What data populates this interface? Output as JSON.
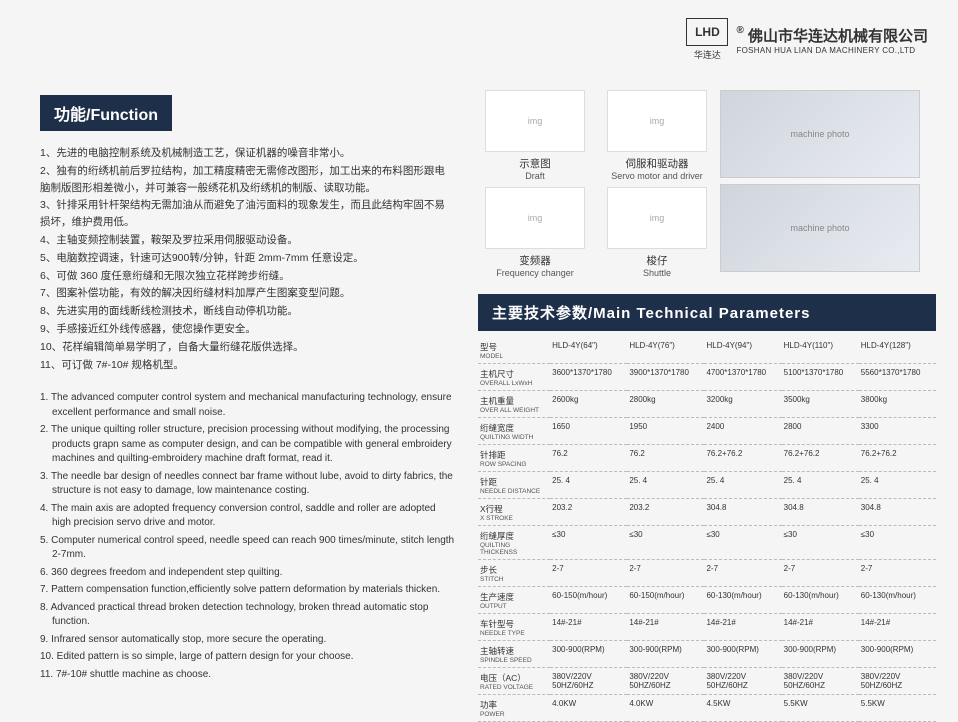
{
  "logo": {
    "mark": "LHD",
    "sub": "华连达",
    "reg": "®"
  },
  "company": {
    "cn": "佛山市华连达机械有限公司",
    "en": "FOSHAN HUA LIAN DA MACHINERY CO.,LTD"
  },
  "func_title": "功能/Function",
  "func_cn": [
    "1、先进的电脑控制系统及机械制造工艺，保证机器的噪音非常小。",
    "2、独有的绗绣机前后罗拉结构，加工精度精密无需修改图形，加工出来的布料图形跟电脑制版图形相差微小，并可兼容一般绣花机及绗绣机的制版、读取功能。",
    "3、针排采用针杆架结构无需加油从而避免了油污面料的现象发生，而且此结构牢固不易损坏，维护费用低。",
    "4、主轴变频控制装置，鞍架及罗拉采用伺服驱动设备。",
    "5、电脑数控调速，针速可达900转/分钟，针距 2mm-7mm 任意设定。",
    "6、可做 360 度任意绗缝和无限次独立花样跨步绗缝。",
    "7、图案补偿功能，有效的解决因绗缝材料加厚产生图案变型问题。",
    "8、先进实用的面线断线检测技术，断线自动停机功能。",
    "9、手感接近红外线传感器，使您操作更安全。",
    "10、花样编辑简单易学明了，自备大量绗缝花版供选择。",
    "11、可订做 7#-10# 规格机型。"
  ],
  "func_en": [
    "1. The advanced computer control system and mechanical manufacturing technology, ensure excellent performance and small noise.",
    "2. The unique quilting roller structure, precision processing without modifying, the processing products grapn same as computer design, and can be compatible with general embroidery machines and quilting-embroidery machine draft format, read it.",
    "3. The needle bar design of needles connect bar frame without lube, avoid to dirty fabrics, the structure is not easy to damage, low maintenance costing.",
    "4. The main axis are adopted frequency conversion control, saddle and roller are adopted high precision servo drive and motor.",
    "5. Computer numerical control speed, needle speed can reach 900 times/minute, stitch length 2-7mm.",
    "6. 360 degrees freedom and independent step quilting.",
    "7. Pattern compensation function,efficiently solve pattern deformation by materials thicken.",
    "8. Advanced practical thread broken detection technology, broken thread automatic stop function.",
    "9. Infrared sensor automatically stop, more secure the operating.",
    "10. Edited pattern is so simple, large of pattern design for your choose.",
    "11. 7#-10# shuttle machine as choose."
  ],
  "icons": [
    {
      "cn": "示意图",
      "en": "Draft"
    },
    {
      "cn": "伺服和驱动器",
      "en": "Servo motor and driver"
    },
    {
      "cn": "变频器",
      "en": "Frequency changer"
    },
    {
      "cn": "梭仔",
      "en": "Shuttle"
    }
  ],
  "params_title": "主要技术参数/Main Technical Parameters",
  "param_models": [
    "HLD-4Y(64\")",
    "HLD-4Y(76\")",
    "HLD-4Y(94\")",
    "HLD-4Y(110\")",
    "HLD-4Y(128\")"
  ],
  "param_rows": [
    {
      "cn": "型号",
      "en": "MODEL",
      "v": [
        "HLD-4Y(64\")",
        "HLD-4Y(76\")",
        "HLD-4Y(94\")",
        "HLD-4Y(110\")",
        "HLD-4Y(128\")"
      ]
    },
    {
      "cn": "主机尺寸",
      "en": "OVERALL LxWxH",
      "v": [
        "3600*1370*1780",
        "3900*1370*1780",
        "4700*1370*1780",
        "5100*1370*1780",
        "5560*1370*1780"
      ]
    },
    {
      "cn": "主机重量",
      "en": "OVER ALL WEIGHT",
      "v": [
        "2600kg",
        "2800kg",
        "3200kg",
        "3500kg",
        "3800kg"
      ]
    },
    {
      "cn": "绗缝宽度",
      "en": "QUILTING WIDTH",
      "v": [
        "1650",
        "1950",
        "2400",
        "2800",
        "3300"
      ]
    },
    {
      "cn": "针排距",
      "en": "ROW SPACING",
      "v": [
        "76.2",
        "76.2",
        "76.2+76.2",
        "76.2+76.2",
        "76.2+76.2"
      ]
    },
    {
      "cn": "针距",
      "en": "NEEDLE DISTANCE",
      "v": [
        "25. 4",
        "25. 4",
        "25. 4",
        "25. 4",
        "25. 4"
      ]
    },
    {
      "cn": "X行程",
      "en": "X STROKE",
      "v": [
        "203.2",
        "203.2",
        "304.8",
        "304.8",
        "304.8"
      ]
    },
    {
      "cn": "绗缝厚度",
      "en": "QUILTING THICKENSS",
      "v": [
        "≤30",
        "≤30",
        "≤30",
        "≤30",
        "≤30"
      ]
    },
    {
      "cn": "步长",
      "en": "STITCH",
      "v": [
        "2-7",
        "2-7",
        "2-7",
        "2-7",
        "2-7"
      ]
    },
    {
      "cn": "生产速度",
      "en": "OUTPUT",
      "v": [
        "60-150(m/hour)",
        "60-150(m/hour)",
        "60-130(m/hour)",
        "60-130(m/hour)",
        "60-130(m/hour)"
      ]
    },
    {
      "cn": "车针型号",
      "en": "NEEDLE TYPE",
      "v": [
        "14#-21#",
        "14#-21#",
        "14#-21#",
        "14#-21#",
        "14#-21#"
      ]
    },
    {
      "cn": "主轴转速",
      "en": "SPINDLE SPEED",
      "v": [
        "300-900(RPM)",
        "300-900(RPM)",
        "300-900(RPM)",
        "300-900(RPM)",
        "300-900(RPM)"
      ]
    },
    {
      "cn": "电压（AC）",
      "en": "RATED VOLTAGE",
      "v": [
        "380V/220V 50HZ/60HZ",
        "380V/220V 50HZ/60HZ",
        "380V/220V 50HZ/60HZ",
        "380V/220V 50HZ/60HZ",
        "380V/220V 50HZ/60HZ"
      ]
    },
    {
      "cn": "功率",
      "en": "POWER",
      "v": [
        "4.0KW",
        "4.0KW",
        "4.5KW",
        "5.5KW",
        "5.5KW"
      ]
    }
  ],
  "colors": {
    "title_bg": "#1e2f4a",
    "page_bg": "#f5f5f5",
    "text": "#333333"
  }
}
